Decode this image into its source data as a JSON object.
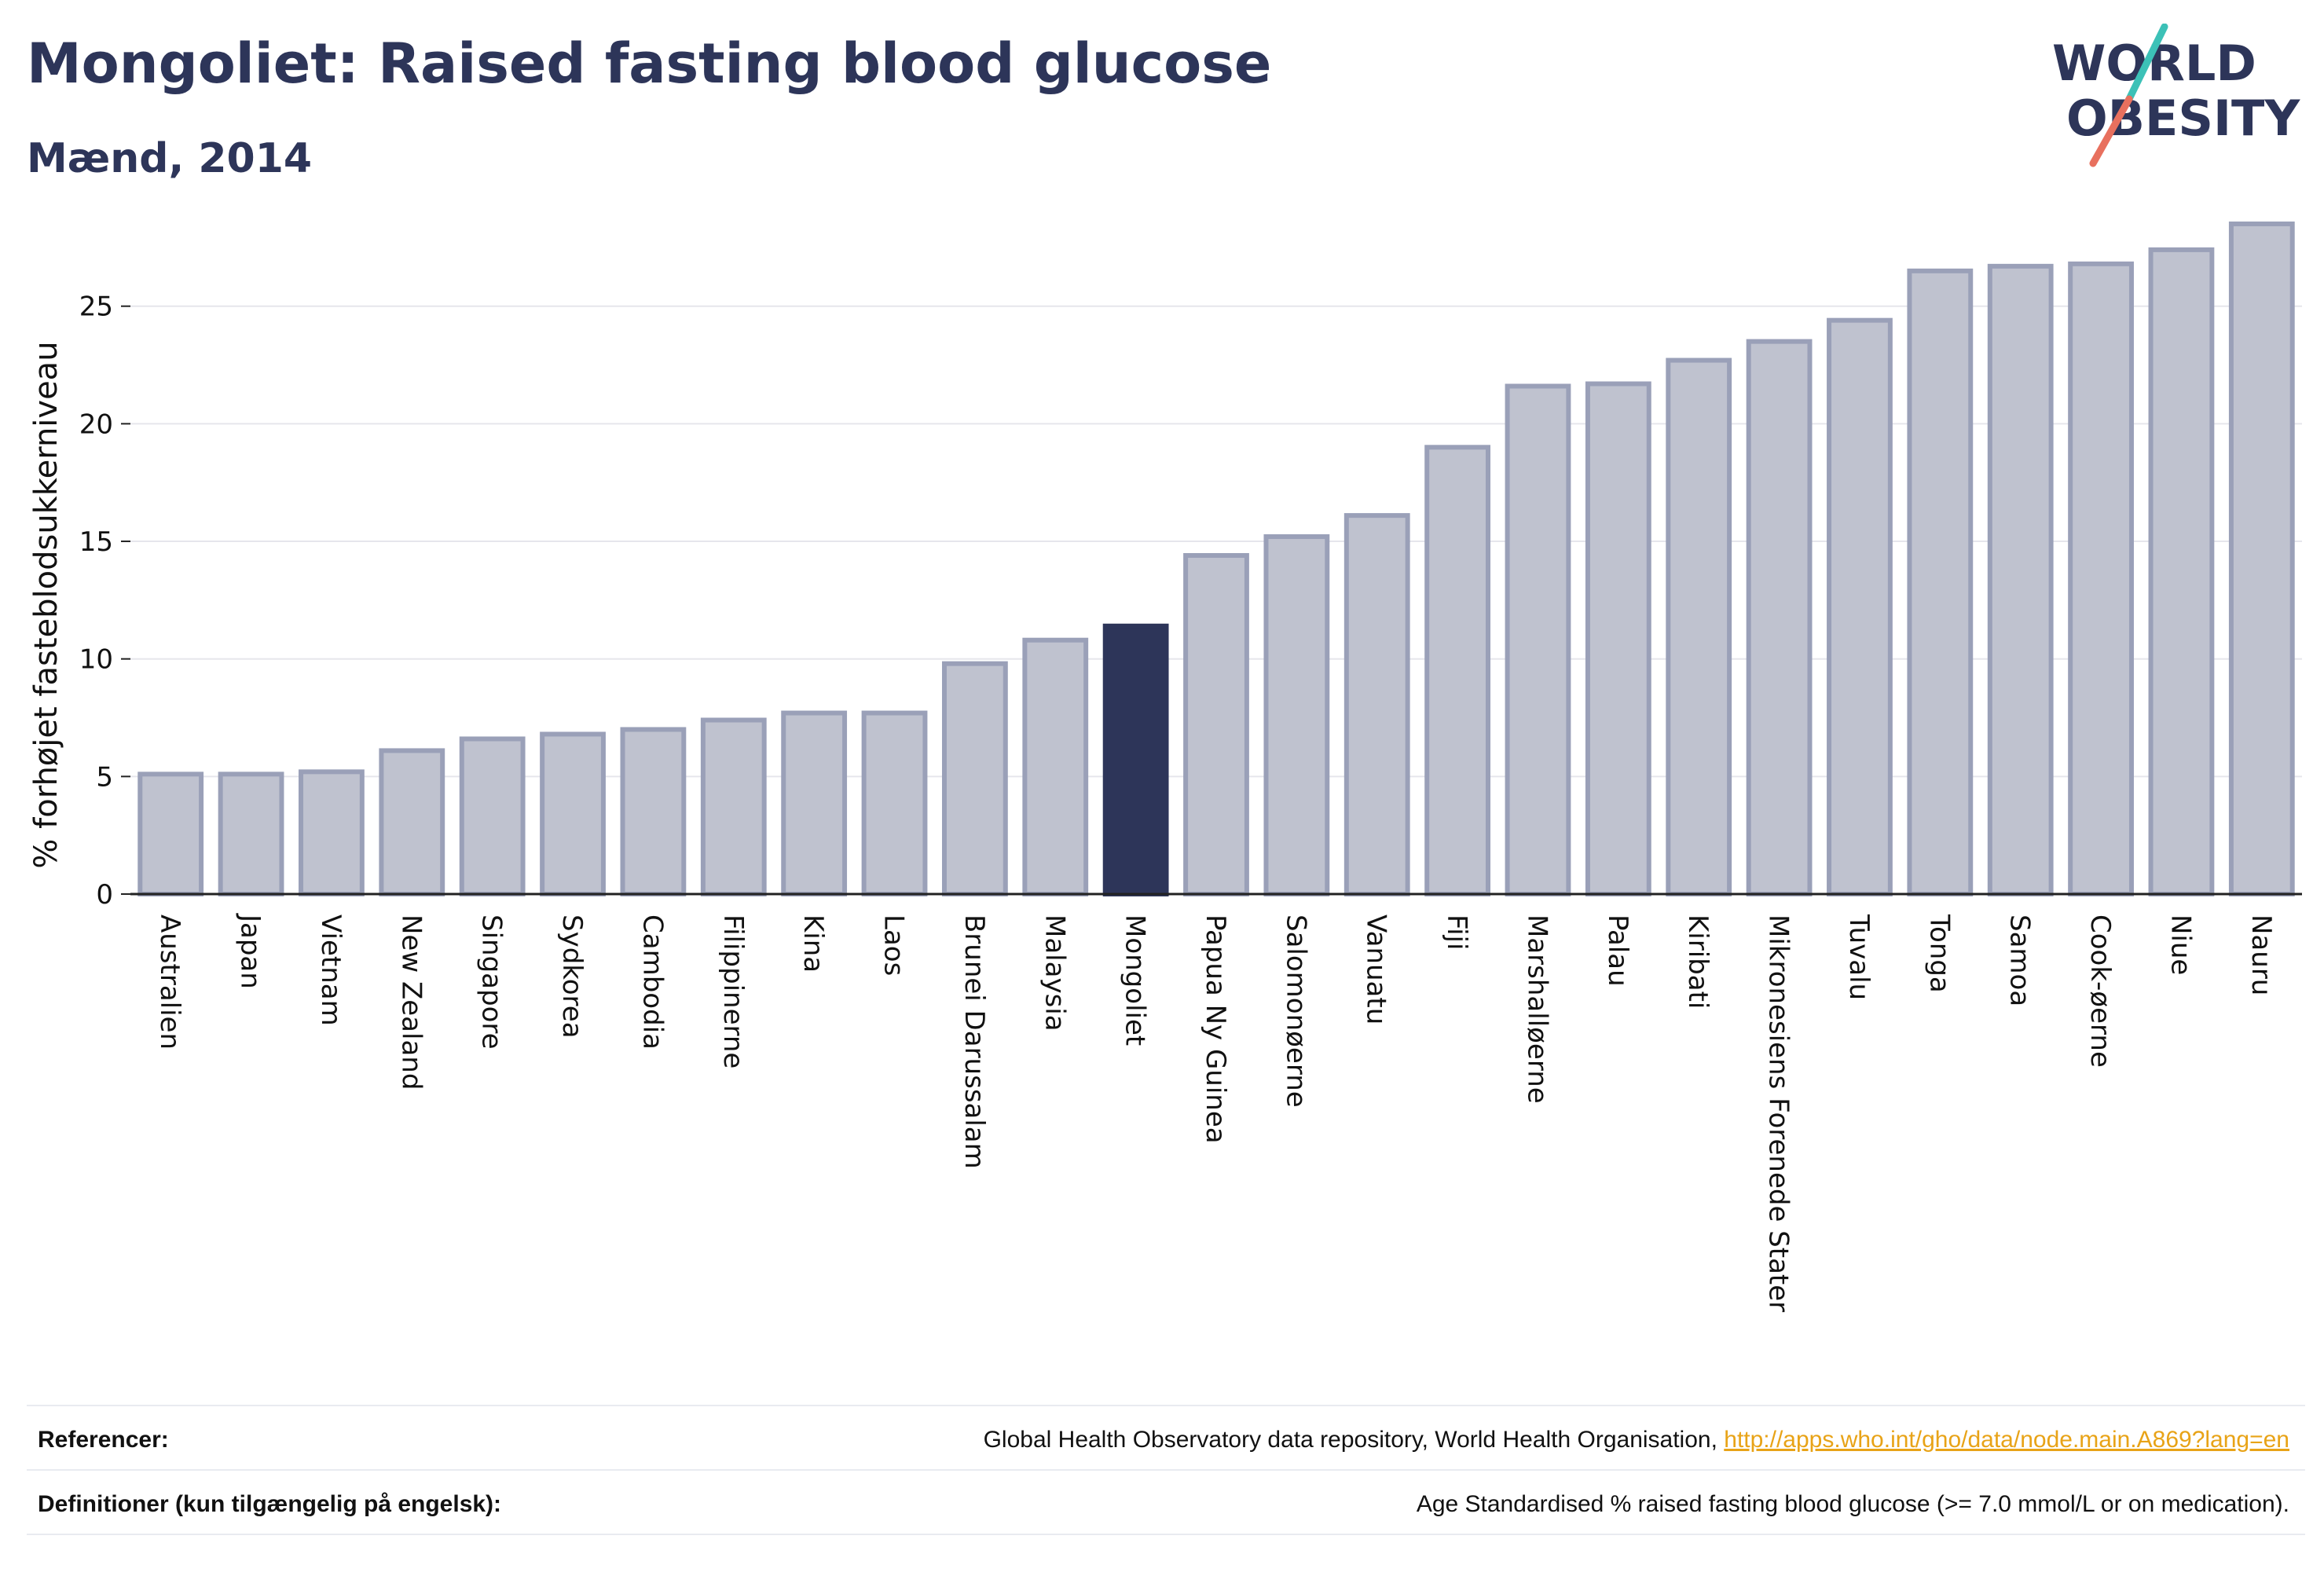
{
  "header": {
    "title": "Mongoliet: Raised fasting blood glucose",
    "subtitle": "Mænd, 2014"
  },
  "logo": {
    "line1": "WORLD",
    "line2": "OBESITY",
    "colors": {
      "text": "#2d3559",
      "slash_top": "#3cc1b7",
      "slash_bottom": "#e8705e"
    }
  },
  "colors": {
    "bar_fill": "#bfc2cf",
    "bar_stroke": "#9aa0b8",
    "highlight": "#2d3559",
    "grid": "#e6e6ec",
    "axis": "#222222"
  },
  "chart_data": {
    "type": "bar",
    "ylabel": "% forhøjet fasteblodsukkerniveau",
    "ylim": [
      0,
      29
    ],
    "yticks": [
      0,
      5,
      10,
      15,
      20,
      25
    ],
    "grid": true,
    "highlight": "Mongoliet",
    "categories": [
      "Australien",
      "Japan",
      "Vietnam",
      "New Zealand",
      "Singapore",
      "Sydkorea",
      "Cambodia",
      "Filippinerne",
      "Kina",
      "Laos",
      "Brunei Darussalam",
      "Malaysia",
      "Mongoliet",
      "Papua Ny Guinea",
      "Salomonøerne",
      "Vanuatu",
      "Fiji",
      "Marshalløerne",
      "Palau",
      "Kiribati",
      "Mikronesiens Forenede Stater",
      "Tuvalu",
      "Tonga",
      "Samoa",
      "Cook-øerne",
      "Niue",
      "Nauru"
    ],
    "values": [
      5.1,
      5.1,
      5.2,
      6.1,
      6.6,
      6.8,
      7.0,
      7.4,
      7.7,
      7.7,
      9.8,
      10.8,
      11.4,
      14.4,
      15.2,
      16.1,
      19.0,
      21.6,
      21.7,
      22.7,
      23.5,
      24.4,
      26.5,
      26.7,
      26.8,
      27.4,
      28.5
    ]
  },
  "footer": {
    "references_label": "Referencer:",
    "references_text": "Global Health Observatory data repository, World Health Organisation, ",
    "references_link": "http://apps.who.int/gho/data/node.main.A869?lang=en",
    "definitions_label": "Definitioner (kun tilgængelig på engelsk):",
    "definitions_text": "Age Standardised % raised fasting blood glucose (>= 7.0 mmol/L or on medication)."
  }
}
